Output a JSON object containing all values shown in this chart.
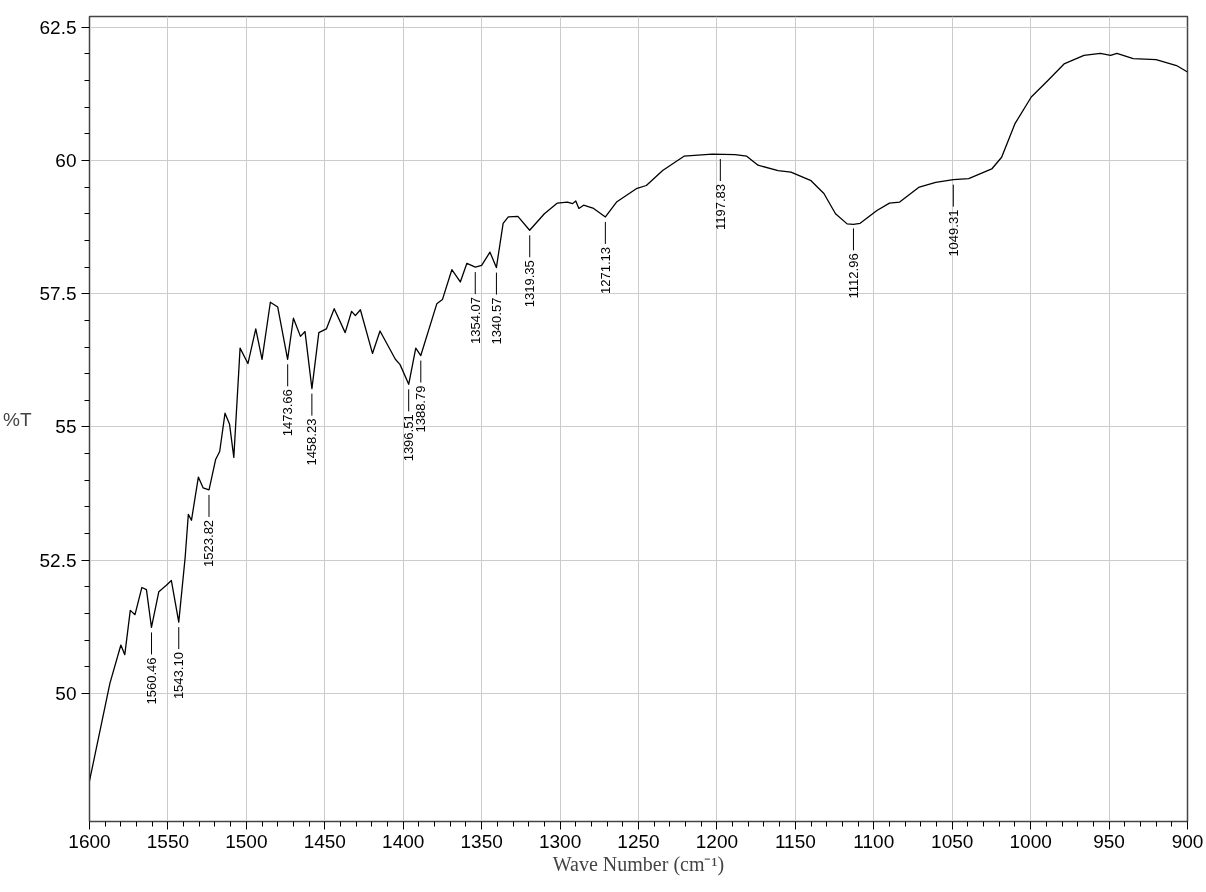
{
  "chart_data": {
    "type": "line",
    "xlabel": "Wave Number (cm⁻¹)",
    "ylabel": "%T",
    "xlim": [
      1600,
      900
    ],
    "ylim": [
      47.6,
      62.7
    ],
    "xticks": [
      1600,
      1550,
      1500,
      1450,
      1400,
      1350,
      1300,
      1250,
      1200,
      1150,
      1100,
      1050,
      1000,
      950,
      900
    ],
    "yticks": [
      50,
      52.5,
      55,
      57.5,
      60,
      62.5
    ],
    "grid": true,
    "marker": "none",
    "line_style": "solid",
    "series": [
      {
        "color": "#000000",
        "x": [
          1600,
          1587,
          1580,
          1577.5,
          1574,
          1571,
          1566.6,
          1563.7,
          1560.5,
          1555.8,
          1551,
          1547.8,
          1543.1,
          1539,
          1537,
          1535,
          1530.6,
          1527.6,
          1523.8,
          1519.6,
          1517,
          1513.6,
          1510.7,
          1508,
          1504,
          1499,
          1494,
          1490,
          1484.7,
          1480,
          1473.7,
          1470,
          1465.5,
          1462.6,
          1458.2,
          1453.8,
          1449,
          1444,
          1437,
          1432.9,
          1430.5,
          1427.3,
          1419.6,
          1414.8,
          1405,
          1402,
          1396.5,
          1392,
          1388.8,
          1378.6,
          1375,
          1369,
          1363.6,
          1359.4,
          1354,
          1350,
          1344.7,
          1340.6,
          1336.3,
          1333,
          1326.9,
          1319.4,
          1310,
          1301.7,
          1295.4,
          1292,
          1290,
          1288,
          1285,
          1278.6,
          1271.1,
          1264,
          1251.4,
          1245,
          1234.6,
          1221,
          1203,
          1188.4,
          1181,
          1173.8,
          1161,
          1152.8,
          1140,
          1131.8,
          1124.4,
          1117,
          1113,
          1108.7,
          1098,
          1090,
          1083.5,
          1071,
          1060.5,
          1049.3,
          1039.5,
          1024.8,
          1018.5,
          1010,
          999.6,
          989,
          978.7,
          966,
          955.6,
          949,
          945,
          934.6,
          920,
          907,
          900
        ],
        "values": [
          48.36,
          50.19,
          50.91,
          50.73,
          51.56,
          51.48,
          51.99,
          51.95,
          51.24,
          51.91,
          52.03,
          52.12,
          51.34,
          52.56,
          53.36,
          53.25,
          54.06,
          53.86,
          53.82,
          54.39,
          54.54,
          55.26,
          55.05,
          54.43,
          56.48,
          56.19,
          56.84,
          56.27,
          57.34,
          57.25,
          56.27,
          57.04,
          56.7,
          56.79,
          55.72,
          56.77,
          56.84,
          57.22,
          56.77,
          57.17,
          57.09,
          57.2,
          56.38,
          56.8,
          56.27,
          56.17,
          55.8,
          56.48,
          56.34,
          57.31,
          57.39,
          57.95,
          57.72,
          58.07,
          58.0,
          58.03,
          58.28,
          57.99,
          58.82,
          58.94,
          58.95,
          58.69,
          59.0,
          59.2,
          59.22,
          59.19,
          59.24,
          59.1,
          59.16,
          59.1,
          58.94,
          59.22,
          59.47,
          59.53,
          59.81,
          60.08,
          60.12,
          60.11,
          60.08,
          59.91,
          59.81,
          59.78,
          59.62,
          59.38,
          59.0,
          58.81,
          58.8,
          58.82,
          59.06,
          59.2,
          59.22,
          59.5,
          59.59,
          59.64,
          59.66,
          59.84,
          60.06,
          60.69,
          61.19,
          61.5,
          61.81,
          61.97,
          62.01,
          61.97,
          62.01,
          61.91,
          61.89,
          61.78,
          61.66
        ]
      }
    ],
    "annotations": [
      {
        "text": "1560.46",
        "x": 1560.46,
        "y": 51.24
      },
      {
        "text": "1543.10",
        "x": 1543.1,
        "y": 51.34
      },
      {
        "text": "1523.82",
        "x": 1523.82,
        "y": 53.82
      },
      {
        "text": "1473.66",
        "x": 1473.66,
        "y": 56.27
      },
      {
        "text": "1458.23",
        "x": 1458.23,
        "y": 55.72
      },
      {
        "text": "1396.51",
        "x": 1396.51,
        "y": 55.8
      },
      {
        "text": "1388.79",
        "x": 1388.79,
        "y": 56.34
      },
      {
        "text": "1354.07",
        "x": 1354.07,
        "y": 58.0
      },
      {
        "text": "1340.57",
        "x": 1340.57,
        "y": 57.99
      },
      {
        "text": "1319.35",
        "x": 1319.35,
        "y": 58.69
      },
      {
        "text": "1271.13",
        "x": 1271.13,
        "y": 58.94
      },
      {
        "text": "1197.83",
        "x": 1197.83,
        "y": 60.12
      },
      {
        "text": "1112.96",
        "x": 1112.96,
        "y": 58.82
      },
      {
        "text": "1049.31",
        "x": 1049.31,
        "y": 59.64
      }
    ]
  }
}
